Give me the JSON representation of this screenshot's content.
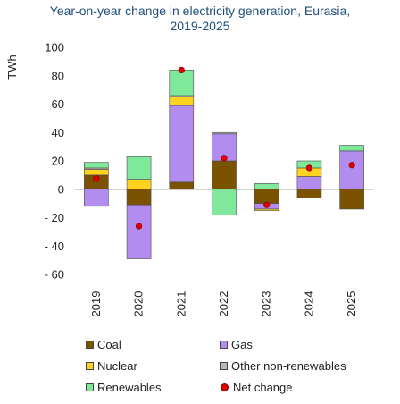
{
  "chart_data": {
    "type": "bar",
    "title_lines": [
      "Year-on-year change in electricity generation, Eurasia,",
      "2019-2025"
    ],
    "ylabel": "TWh",
    "ylim": [
      -60,
      100
    ],
    "yticks": [
      100,
      80,
      60,
      40,
      20,
      0,
      -20,
      -40,
      -60
    ],
    "yticks_labels": [
      "100",
      "80",
      "60",
      "40",
      "20",
      "0",
      "- 20",
      "- 40",
      "- 60"
    ],
    "categories": [
      "2019",
      "2020",
      "2021",
      "2022",
      "2023",
      "2024",
      "2025"
    ],
    "series": [
      {
        "name": "Coal",
        "color": "#7a5200",
        "values": [
          10,
          -11,
          5,
          20,
          -10,
          -6,
          -14
        ]
      },
      {
        "name": "Gas",
        "color": "#b38cf0",
        "values": [
          -12,
          -38,
          54,
          19,
          -4,
          9,
          27
        ]
      },
      {
        "name": "Nuclear",
        "color": "#ffd21f",
        "values": [
          4,
          7,
          6,
          0,
          -1,
          6,
          0
        ]
      },
      {
        "name": "Other non-renewables",
        "color": "#b8b8b8",
        "values": [
          1,
          0,
          1,
          1,
          0,
          0,
          0
        ]
      },
      {
        "name": "Renewables",
        "color": "#7fe89a",
        "values": [
          4,
          16,
          18,
          -18,
          4,
          5,
          4
        ]
      }
    ],
    "net_change": {
      "name": "Net change",
      "color": "#e00000",
      "values": [
        7.5,
        -26,
        84,
        22,
        -11,
        15,
        17
      ]
    },
    "grid": false,
    "legend_position": "bottom"
  }
}
